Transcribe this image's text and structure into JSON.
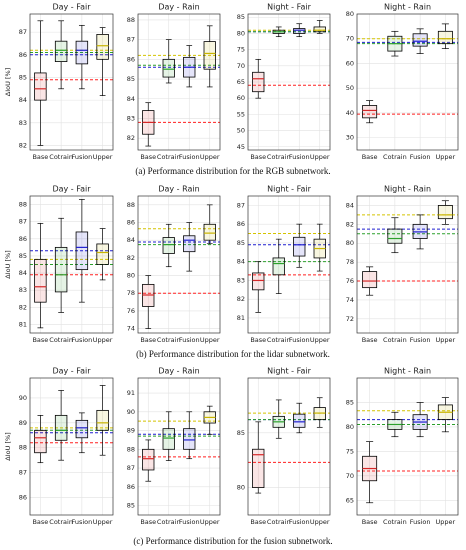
{
  "chart_data": [
    {
      "type": "box",
      "title": "Day - Fair",
      "y_label": "ΔIoU [%]",
      "categories": [
        "Base",
        "Cotrain",
        "Fusion",
        "Upper"
      ],
      "box_colors": [
        "#d62728",
        "#2ca02c",
        "#1f1fd0",
        "#c8b400"
      ],
      "boxes": [
        [
          82,
          84,
          84.5,
          85.2,
          87.5
        ],
        [
          84.5,
          85.7,
          86.2,
          86.6,
          87.5
        ],
        [
          84.5,
          85.6,
          86.2,
          86.6,
          87.3
        ],
        [
          84.2,
          85.8,
          86.4,
          86.9,
          87.2
        ]
      ],
      "reference_lines": [
        {
          "color": "#ff2020",
          "value": 84.9
        },
        {
          "color": "#1f1fd0",
          "value": 86.0
        },
        {
          "color": "#2ca02c",
          "value": 86.1
        },
        {
          "color": "#d4c400",
          "value": 86.2
        }
      ],
      "ylim": [
        81.8,
        87.8
      ],
      "yticks": [
        82,
        83,
        84,
        85,
        86,
        87
      ],
      "grid": true
    },
    {
      "type": "box",
      "title": "Day - Rain",
      "categories": [
        "Base",
        "Cotrain",
        "Fusion",
        "Upper"
      ],
      "box_colors": [
        "#d62728",
        "#2ca02c",
        "#1f1fd0",
        "#c8b400"
      ],
      "boxes": [
        [
          81.6,
          82.2,
          82.8,
          83.4,
          83.8
        ],
        [
          84.8,
          85.1,
          85.5,
          86,
          87
        ],
        [
          84.6,
          85.1,
          85.6,
          86.1,
          86.7
        ],
        [
          84.6,
          85.5,
          86.3,
          86.9,
          87.7
        ]
      ],
      "reference_lines": [
        {
          "color": "#ff2020",
          "value": 82.8
        },
        {
          "color": "#1f1fd0",
          "value": 85.6
        },
        {
          "color": "#2ca02c",
          "value": 85.7
        },
        {
          "color": "#d4c400",
          "value": 86.2
        }
      ],
      "ylim": [
        81.4,
        88.3
      ],
      "yticks": [
        82,
        83,
        84,
        85,
        86,
        87,
        88
      ],
      "grid": true
    },
    {
      "type": "box",
      "title": "Night - Fair",
      "categories": [
        "Base",
        "Cotrain",
        "Fusion",
        "Upper"
      ],
      "box_colors": [
        "#d62728",
        "#2ca02c",
        "#1f1fd0",
        "#c8b400"
      ],
      "boxes": [
        [
          60,
          62,
          66,
          68,
          72
        ],
        [
          79,
          80,
          80.5,
          81,
          82
        ],
        [
          79,
          80,
          81,
          81.5,
          83
        ],
        [
          80,
          80.5,
          81,
          82,
          84
        ]
      ],
      "reference_lines": [
        {
          "color": "#ff2020",
          "value": 64
        },
        {
          "color": "#1f1fd0",
          "value": 80.5
        },
        {
          "color": "#2ca02c",
          "value": 80.5
        },
        {
          "color": "#d4c400",
          "value": 81
        }
      ],
      "ylim": [
        44,
        86
      ],
      "yticks": [
        45,
        50,
        55,
        60,
        65,
        70,
        75,
        80,
        85
      ],
      "grid": true
    },
    {
      "type": "box",
      "title": "Night - Rain",
      "categories": [
        "Base",
        "Cotrain",
        "Fusion",
        "Upper"
      ],
      "box_colors": [
        "#d62728",
        "#2ca02c",
        "#1f1fd0",
        "#c8b400"
      ],
      "boxes": [
        [
          36,
          38,
          41,
          43,
          45
        ],
        [
          63,
          65,
          68,
          71,
          73
        ],
        [
          64,
          67,
          69,
          72,
          74
        ],
        [
          66,
          68,
          70,
          73,
          76
        ]
      ],
      "reference_lines": [
        {
          "color": "#ff2020",
          "value": 39.5
        },
        {
          "color": "#1f1fd0",
          "value": 68.5
        },
        {
          "color": "#2ca02c",
          "value": 68
        },
        {
          "color": "#d4c400",
          "value": 70
        }
      ],
      "ylim": [
        25,
        80
      ],
      "yticks": [
        30,
        40,
        50,
        60,
        70,
        80
      ],
      "grid": true
    },
    {
      "type": "box",
      "title": "Day - Fair",
      "y_label": "ΔIoU [%]",
      "categories": [
        "Base",
        "Cotrain",
        "Fusion",
        "Upper"
      ],
      "box_colors": [
        "#d62728",
        "#2ca02c",
        "#1f1fd0",
        "#c8b400"
      ],
      "boxes": [
        [
          80.8,
          82.3,
          83.2,
          84.8,
          86.9
        ],
        [
          81.7,
          82.9,
          83.9,
          85.5,
          87.2
        ],
        [
          82.3,
          84.2,
          85.5,
          86.4,
          88.3
        ],
        [
          83.6,
          84.5,
          85.2,
          85.7,
          86.6
        ]
      ],
      "reference_lines": [
        {
          "color": "#ff2020",
          "value": 83.9
        },
        {
          "color": "#1f1fd0",
          "value": 85.3
        },
        {
          "color": "#2ca02c",
          "value": 84.5
        },
        {
          "color": "#d4c400",
          "value": 84.8
        }
      ],
      "ylim": [
        80.5,
        88.5
      ],
      "yticks": [
        81,
        82,
        83,
        84,
        85,
        86,
        87,
        88
      ],
      "grid": true
    },
    {
      "type": "box",
      "title": "Day - Rain",
      "categories": [
        "Base",
        "Cotrain",
        "Fusion",
        "Upper"
      ],
      "box_colors": [
        "#d62728",
        "#2ca02c",
        "#1f1fd0",
        "#c8b400"
      ],
      "boxes": [
        [
          74,
          76.5,
          77.8,
          79,
          80
        ],
        [
          81,
          82.5,
          83.5,
          84.3,
          85.8
        ],
        [
          80.5,
          82.7,
          84,
          84.5,
          86
        ],
        [
          83.6,
          84,
          84.8,
          85.8,
          88
        ]
      ],
      "reference_lines": [
        {
          "color": "#ff2020",
          "value": 78
        },
        {
          "color": "#1f1fd0",
          "value": 83.8
        },
        {
          "color": "#2ca02c",
          "value": 83.5
        },
        {
          "color": "#d4c400",
          "value": 85.3
        }
      ],
      "ylim": [
        73.5,
        89
      ],
      "yticks": [
        74,
        76,
        78,
        80,
        82,
        84,
        86,
        88
      ],
      "grid": true
    },
    {
      "type": "box",
      "title": "Night - Fair",
      "categories": [
        "Base",
        "Cotrain",
        "Fusion",
        "Upper"
      ],
      "box_colors": [
        "#d62728",
        "#2ca02c",
        "#1f1fd0",
        "#c8b400"
      ],
      "boxes": [
        [
          81.3,
          82.5,
          83,
          83.4,
          84
        ],
        [
          82.3,
          83.3,
          83.9,
          84.2,
          85.2
        ],
        [
          83.7,
          84.3,
          84.9,
          85.3,
          86
        ],
        [
          83.5,
          84.2,
          84.7,
          85.2,
          86
        ]
      ],
      "reference_lines": [
        {
          "color": "#ff2020",
          "value": 83.3
        },
        {
          "color": "#1f1fd0",
          "value": 84.9
        },
        {
          "color": "#2ca02c",
          "value": 84
        },
        {
          "color": "#d4c400",
          "value": 85.5
        }
      ],
      "ylim": [
        80.2,
        87.5
      ],
      "yticks": [
        81,
        82,
        83,
        84,
        85,
        86,
        87
      ],
      "grid": true
    },
    {
      "type": "box",
      "title": "Night - Rain",
      "categories": [
        "Base",
        "Cotrain",
        "Fusion",
        "Upper"
      ],
      "box_colors": [
        "#d62728",
        "#2ca02c",
        "#1f1fd0",
        "#c8b400"
      ],
      "boxes": [
        [
          74.5,
          75.3,
          76,
          77,
          77.5
        ],
        [
          79,
          80,
          80.5,
          81.5,
          82.7
        ],
        [
          79.4,
          80.5,
          81.2,
          82,
          83
        ],
        [
          82,
          82.6,
          83,
          84,
          84.5
        ]
      ],
      "reference_lines": [
        {
          "color": "#ff2020",
          "value": 76
        },
        {
          "color": "#1f1fd0",
          "value": 81.5
        },
        {
          "color": "#2ca02c",
          "value": 81
        },
        {
          "color": "#d4c400",
          "value": 83
        }
      ],
      "ylim": [
        70.5,
        85
      ],
      "yticks": [
        72,
        74,
        76,
        78,
        80,
        82,
        84
      ],
      "grid": true
    },
    {
      "type": "box",
      "title": "Day - Fair",
      "y_label": "ΔIoU [%]",
      "categories": [
        "Base",
        "Cotrain",
        "Fusion",
        "Upper"
      ],
      "box_colors": [
        "#d62728",
        "#2ca02c",
        "#1f1fd0",
        "#c8b400"
      ],
      "boxes": [
        [
          87.4,
          87.8,
          88.4,
          88.7,
          89.3
        ],
        [
          87.5,
          88.3,
          88.7,
          89.3,
          90.3
        ],
        [
          87.8,
          88.4,
          88.8,
          89.1,
          89.4
        ],
        [
          87.7,
          88.7,
          89,
          89.5,
          90.5
        ]
      ],
      "reference_lines": [
        {
          "color": "#ff2020",
          "value": 88.2
        },
        {
          "color": "#1f1fd0",
          "value": 88.6
        },
        {
          "color": "#2ca02c",
          "value": 88.7
        },
        {
          "color": "#d4c400",
          "value": 88.8
        }
      ],
      "ylim": [
        85.3,
        90.8
      ],
      "yticks": [
        86,
        87,
        88,
        89,
        90
      ],
      "grid": true
    },
    {
      "type": "box",
      "title": "Day - Rain",
      "categories": [
        "Base",
        "Cotrain",
        "Fusion",
        "Upper"
      ],
      "box_colors": [
        "#d62728",
        "#2ca02c",
        "#1f1fd0",
        "#c8b400"
      ],
      "boxes": [
        [
          86.3,
          86.9,
          87.5,
          88,
          88.5
        ],
        [
          87.4,
          88,
          88.6,
          89.1,
          90
        ],
        [
          87.5,
          88,
          88.5,
          89.1,
          90
        ],
        [
          88.8,
          89.4,
          89.7,
          90,
          90.3
        ]
      ],
      "reference_lines": [
        {
          "color": "#ff2020",
          "value": 87.6
        },
        {
          "color": "#1f1fd0",
          "value": 88.8
        },
        {
          "color": "#2ca02c",
          "value": 88.7
        },
        {
          "color": "#d4c400",
          "value": 89.5
        }
      ],
      "ylim": [
        84.5,
        91.8
      ],
      "yticks": [
        85,
        86,
        87,
        88,
        89,
        90,
        91
      ],
      "grid": true
    },
    {
      "type": "box",
      "title": "Night - Fair",
      "categories": [
        "Base",
        "Cotrain",
        "Fusion",
        "Upper"
      ],
      "box_colors": [
        "#d62728",
        "#2ca02c",
        "#1f1fd0",
        "#c8b400"
      ],
      "boxes": [
        [
          79.5,
          80,
          83,
          83.5,
          86
        ],
        [
          84.5,
          85.5,
          86,
          86.5,
          88
        ],
        [
          85,
          85.5,
          86,
          86.7,
          87.7
        ],
        [
          85.5,
          86.2,
          86.8,
          87.3,
          88.2
        ]
      ],
      "reference_lines": [
        {
          "color": "#ff2020",
          "value": 82.3
        },
        {
          "color": "#1f1fd0",
          "value": 86.2
        },
        {
          "color": "#2ca02c",
          "value": 86.2
        },
        {
          "color": "#d4c400",
          "value": 86.8
        }
      ],
      "ylim": [
        77.5,
        90
      ],
      "yticks": [
        80,
        85
      ],
      "grid": true
    },
    {
      "type": "box",
      "title": "Night - Rain",
      "categories": [
        "Base",
        "Cotrain",
        "Fusion",
        "Upper"
      ],
      "box_colors": [
        "#d62728",
        "#2ca02c",
        "#1f1fd0",
        "#c8b400"
      ],
      "boxes": [
        [
          64.5,
          69,
          71.5,
          74,
          77
        ],
        [
          78,
          79.5,
          80.5,
          81.5,
          83
        ],
        [
          78,
          79.5,
          81,
          82.5,
          85
        ],
        [
          79,
          81.5,
          83,
          84.5,
          86
        ]
      ],
      "reference_lines": [
        {
          "color": "#ff2020",
          "value": 71
        },
        {
          "color": "#1f1fd0",
          "value": 81.5
        },
        {
          "color": "#2ca02c",
          "value": 80.5
        },
        {
          "color": "#d4c400",
          "value": 83.3
        }
      ],
      "ylim": [
        62,
        90
      ],
      "yticks": [
        65,
        70,
        75,
        80,
        85
      ],
      "grid": true
    }
  ],
  "captions": [
    "(a) Performance distribution for the RGB subnetwork.",
    "(b) Performance distribution for the lidar subnetwork.",
    "(c) Performance distribution for the fusion subnetwork."
  ]
}
